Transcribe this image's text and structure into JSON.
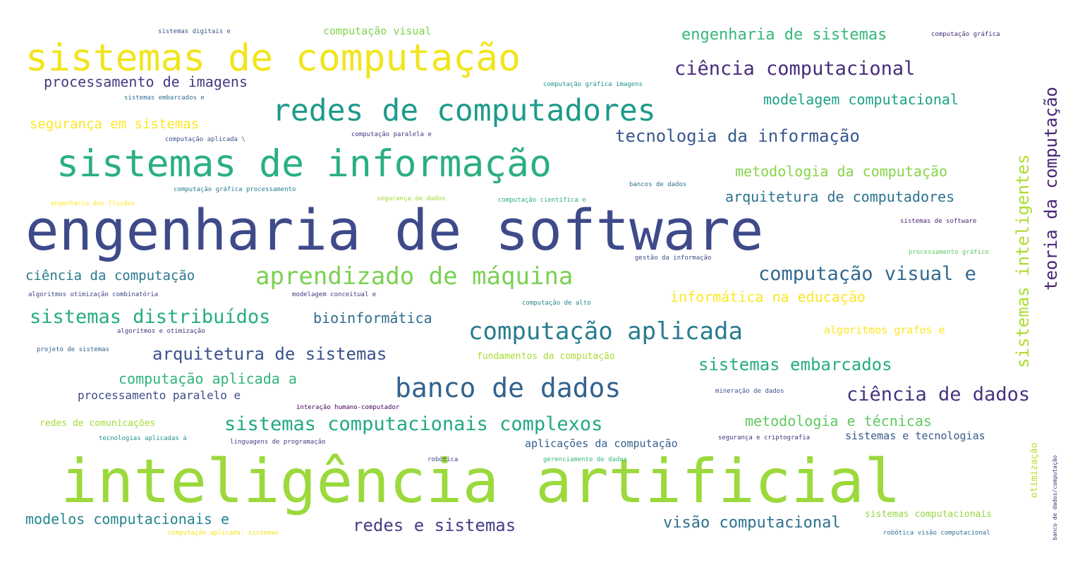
{
  "words": [
    {
      "text": "engenharia de software",
      "color": "#3e4a89"
    },
    {
      "text": "inteligência artificial",
      "color": "#9bd93c"
    },
    {
      "text": "sistemas de computação",
      "color": "#f1e51d"
    },
    {
      "text": "sistemas de informação",
      "color": "#2ab07f"
    },
    {
      "text": "redes de computadores",
      "color": "#1e9b8a"
    },
    {
      "text": "banco de dados",
      "color": "#33638d"
    },
    {
      "text": "aprendizado de máquina",
      "color": "#7ad151"
    },
    {
      "text": "computação aplicada",
      "color": "#287c8e"
    },
    {
      "text": "sistemas computacionais complexos",
      "color": "#22a884"
    },
    {
      "text": "ciência computacional",
      "color": "#472d7b"
    },
    {
      "text": "teoria da computação",
      "color": "#482475"
    },
    {
      "text": "sistemas inteligentes",
      "color": "#addc30"
    },
    {
      "text": "ciência de dados",
      "color": "#46337e"
    },
    {
      "text": "computação visual e",
      "color": "#31688e"
    },
    {
      "text": "tecnologia da informação",
      "color": "#38598c"
    },
    {
      "text": "sistemas distribuídos",
      "color": "#25ac82"
    },
    {
      "text": "arquitetura de sistemas",
      "color": "#3b528b"
    },
    {
      "text": "sistemas embarcados",
      "color": "#26ad81"
    },
    {
      "text": "redes e sistemas",
      "color": "#433e85"
    },
    {
      "text": "visão computacional",
      "color": "#2d718e"
    },
    {
      "text": "engenharia de sistemas",
      "color": "#35b779"
    },
    {
      "text": "processamento de imagens",
      "color": "#443983"
    },
    {
      "text": "modelagem computacional",
      "color": "#1fa187"
    },
    {
      "text": "arquitetura de computadores",
      "color": "#2c728e"
    },
    {
      "text": "metodologia da computação",
      "color": "#86d549"
    },
    {
      "text": "segurança em sistemas",
      "color": "#fde725"
    },
    {
      "text": "ciência da computação",
      "color": "#2a788e"
    },
    {
      "text": "informática na educação",
      "color": "#fde725"
    },
    {
      "text": "bioinformática",
      "color": "#2e6e8e"
    },
    {
      "text": "computação aplicada a",
      "color": "#2fb47c"
    },
    {
      "text": "processamento paralelo e",
      "color": "#3e4c8a"
    },
    {
      "text": "metodologia e técnicas",
      "color": "#5ec962"
    },
    {
      "text": "modelos computacionais e",
      "color": "#24868e"
    },
    {
      "text": "aplicações da computação",
      "color": "#355f8d"
    },
    {
      "text": "sistemas e tecnologias",
      "color": "#38598c"
    },
    {
      "text": "computação visual",
      "color": "#7fd34e"
    },
    {
      "text": "redes de comunicações",
      "color": "#a5db36"
    },
    {
      "text": "algoritmos grafos e",
      "color": "#fde725"
    },
    {
      "text": "fundamentos da computação",
      "color": "#a8db34"
    },
    {
      "text": "sistemas computacionais",
      "color": "#95d840"
    },
    {
      "text": "otimização",
      "color": "#b5de2b"
    },
    {
      "text": "sistemas digitais e",
      "color": "#3b528b"
    },
    {
      "text": "computação gráfica",
      "color": "#472c7a"
    },
    {
      "text": "computação gráfica imagens",
      "color": "#21918c"
    },
    {
      "text": "sistemas embarcados e",
      "color": "#2e6e8e"
    },
    {
      "text": "computação paralela e",
      "color": "#453882"
    },
    {
      "text": "computação aplicada \\",
      "color": "#3b528b"
    },
    {
      "text": "computação gráfica processamento",
      "color": "#287c8e"
    },
    {
      "text": "bancos de dados",
      "color": "#2d708e"
    },
    {
      "text": "engenharia dos fluidos",
      "color": "#fde725"
    },
    {
      "text": "segurança de dados",
      "color": "#a0da39"
    },
    {
      "text": "computação científica e",
      "color": "#27ad81"
    },
    {
      "text": "sistemas de software",
      "color": "#481f70"
    },
    {
      "text": "processamento gráfico",
      "color": "#5ec962"
    },
    {
      "text": "gestão da informação",
      "color": "#3e4a89"
    },
    {
      "text": "algoritmos otimização combinatória",
      "color": "#404588"
    },
    {
      "text": "modelagem conceitual e",
      "color": "#453781"
    },
    {
      "text": "computação de alto",
      "color": "#25838e"
    },
    {
      "text": "algoritmos e otimização",
      "color": "#46327e"
    },
    {
      "text": "projeto de sistemas",
      "color": "#33638d"
    },
    {
      "text": "mineração de dados",
      "color": "#3b528b"
    },
    {
      "text": "interação humano-computador",
      "color": "#440154"
    },
    {
      "text": "tecnologias aplicadas à",
      "color": "#21918c"
    },
    {
      "text": "linguagens de programação",
      "color": "#424086"
    },
    {
      "text": "segurança e criptografia",
      "color": "#46337e"
    },
    {
      "text": "robótica",
      "color": "#3f4889"
    },
    {
      "text": "gerenciamento de dados",
      "color": "#35b779"
    },
    {
      "text": "computação aplicada: sistemas",
      "color": "#f1e51d"
    },
    {
      "text": "robótica visão computacional",
      "color": "#2c728e"
    },
    {
      "text": "banco de dados/computação",
      "color": "#482878"
    }
  ]
}
